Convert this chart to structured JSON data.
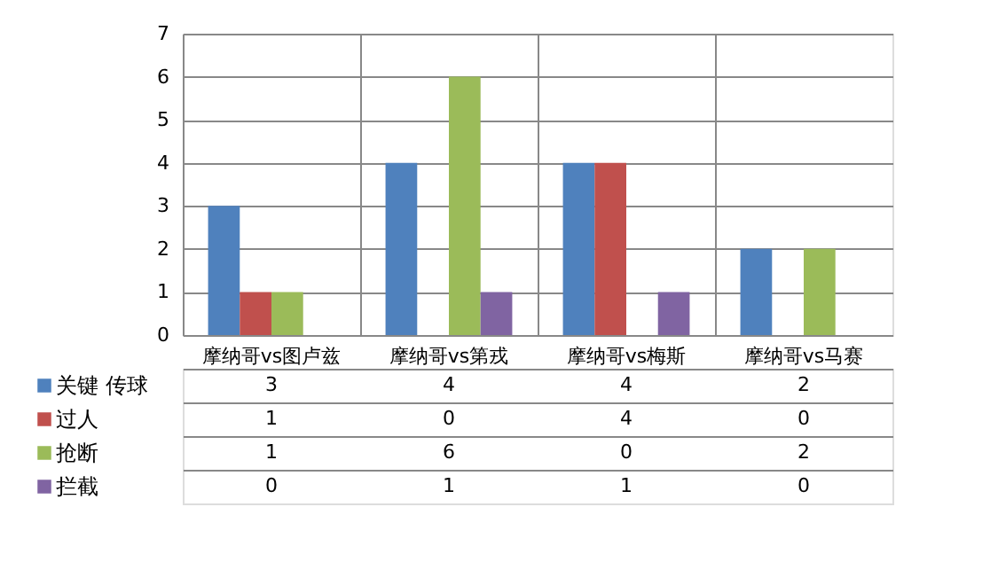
{
  "chart_data": {
    "type": "bar",
    "categories": [
      "摩纳哥vs图卢兹",
      "摩纳哥vs第戎",
      "摩纳哥vs梅斯",
      "摩纳哥vs马赛"
    ],
    "series": [
      {
        "name": "关键 传球",
        "color": "#4f81bd",
        "values": [
          3,
          4,
          4,
          2
        ]
      },
      {
        "name": "过人",
        "color": "#c0504d",
        "values": [
          1,
          0,
          4,
          0
        ]
      },
      {
        "name": "抢断",
        "color": "#9bbb59",
        "values": [
          1,
          6,
          0,
          2
        ]
      },
      {
        "name": "拦截",
        "color": "#8064a2",
        "values": [
          0,
          1,
          1,
          0
        ]
      }
    ],
    "ylim": [
      0,
      7
    ],
    "yticks": [
      0,
      1,
      2,
      3,
      4,
      5,
      6,
      7
    ],
    "grid": "y",
    "legend": "bottom",
    "data_labels": true
  }
}
